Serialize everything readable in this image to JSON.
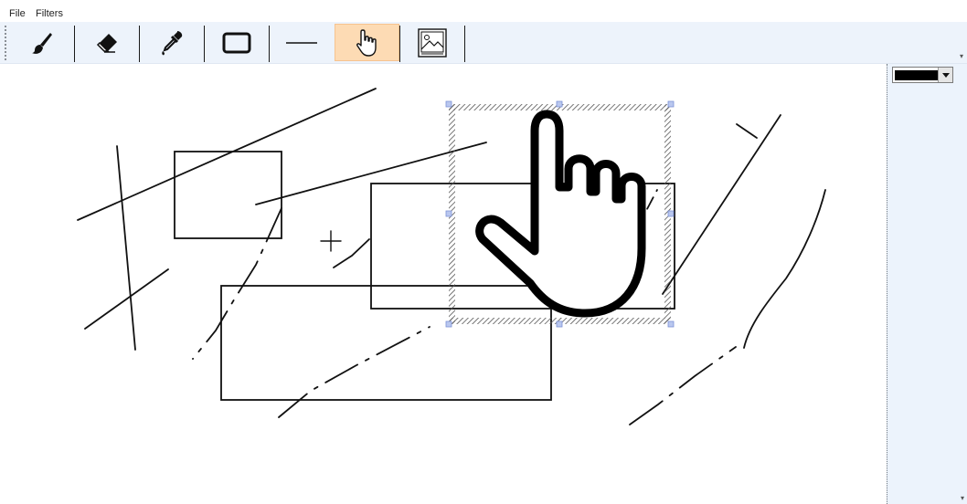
{
  "menu": {
    "file": "File",
    "filters": "Filters"
  },
  "toolbar": {
    "tools": [
      {
        "name": "brush-icon",
        "active": false
      },
      {
        "name": "eraser-icon",
        "active": false
      },
      {
        "name": "eyedropper-icon",
        "active": false
      },
      {
        "name": "rectangle-icon",
        "active": false
      },
      {
        "name": "line-icon",
        "active": false
      },
      {
        "name": "hand-pointer-icon",
        "active": true
      },
      {
        "name": "image-icon",
        "active": false
      }
    ]
  },
  "sidepanel": {
    "stroke_color": "#000000",
    "dropdown_icon": "chevron-down-icon"
  },
  "colors": {
    "active_tool_bg": "#fddbb4",
    "toolbar_bg": "#edf3fb",
    "panel_bg": "#ecf3fc",
    "selection_handle": "#a8b8e8"
  }
}
